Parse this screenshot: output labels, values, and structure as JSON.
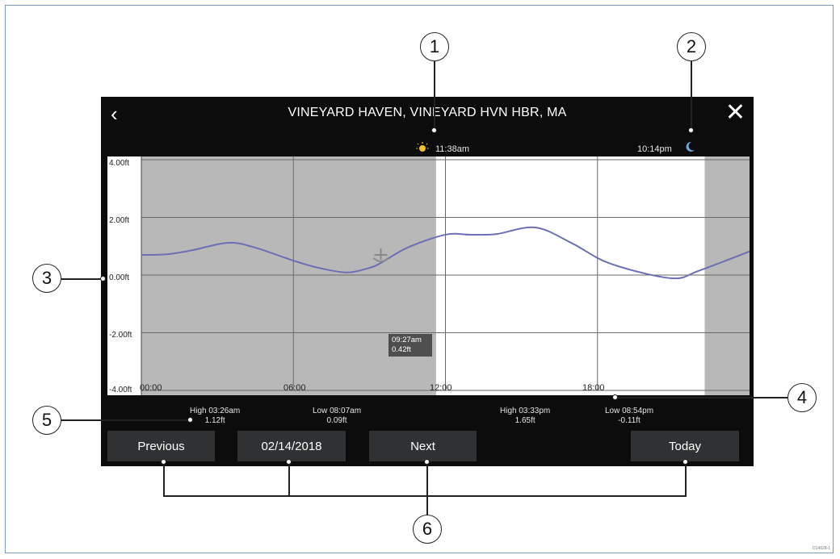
{
  "title": "VINEYARD HAVEN, VINEYARD HVN HBR, MA",
  "nav": {
    "back_icon": "chevron-left-icon",
    "close_icon": "close-icon"
  },
  "sun": {
    "time": "11:38am",
    "icon": "sun-icon"
  },
  "moon": {
    "time": "10:14pm",
    "icon": "moon-icon"
  },
  "chart_data": {
    "type": "line",
    "x_ticks": [
      "00:00",
      "06:00",
      "12:00",
      "18:00"
    ],
    "y_ticks": [
      "4.00ft",
      "2.00ft",
      "0.00ft",
      "-2.00ft",
      "-4.00ft"
    ],
    "ylim": [
      -4,
      4
    ],
    "xlim_hours": [
      0,
      24
    ],
    "series": [
      {
        "x": [
          0,
          1,
          2,
          3.43,
          4.5,
          6,
          7,
          8.12,
          9,
          9.45,
          10.5,
          12,
          13,
          14,
          15.55,
          17,
          18.5,
          20.9,
          22,
          24
        ],
        "y": [
          0.7,
          0.72,
          0.86,
          1.12,
          0.95,
          0.5,
          0.25,
          0.09,
          0.25,
          0.42,
          0.95,
          1.4,
          1.4,
          1.42,
          1.65,
          1.1,
          0.4,
          -0.11,
          0.15,
          0.82
        ]
      }
    ],
    "shaded_periods_hours": [
      [
        0,
        11.63
      ],
      [
        22.23,
        24
      ]
    ],
    "cursor": {
      "time": "09:27am",
      "value": "0.42ft",
      "hour": 9.45,
      "y": 0.42
    }
  },
  "tides": [
    {
      "label": "High 03:26am",
      "height": "1.12ft"
    },
    {
      "label": "Low 08:07am",
      "height": "0.09ft"
    },
    {
      "label": "High 03:33pm",
      "height": "1.65ft"
    },
    {
      "label": "Low 08:54pm",
      "height": "-0.11ft"
    }
  ],
  "buttons": {
    "previous": "Previous",
    "date": "02/14/2018",
    "next": "Next",
    "today": "Today"
  },
  "callouts": [
    "1",
    "2",
    "3",
    "4",
    "5",
    "6"
  ],
  "figure_code": "D14028-1"
}
